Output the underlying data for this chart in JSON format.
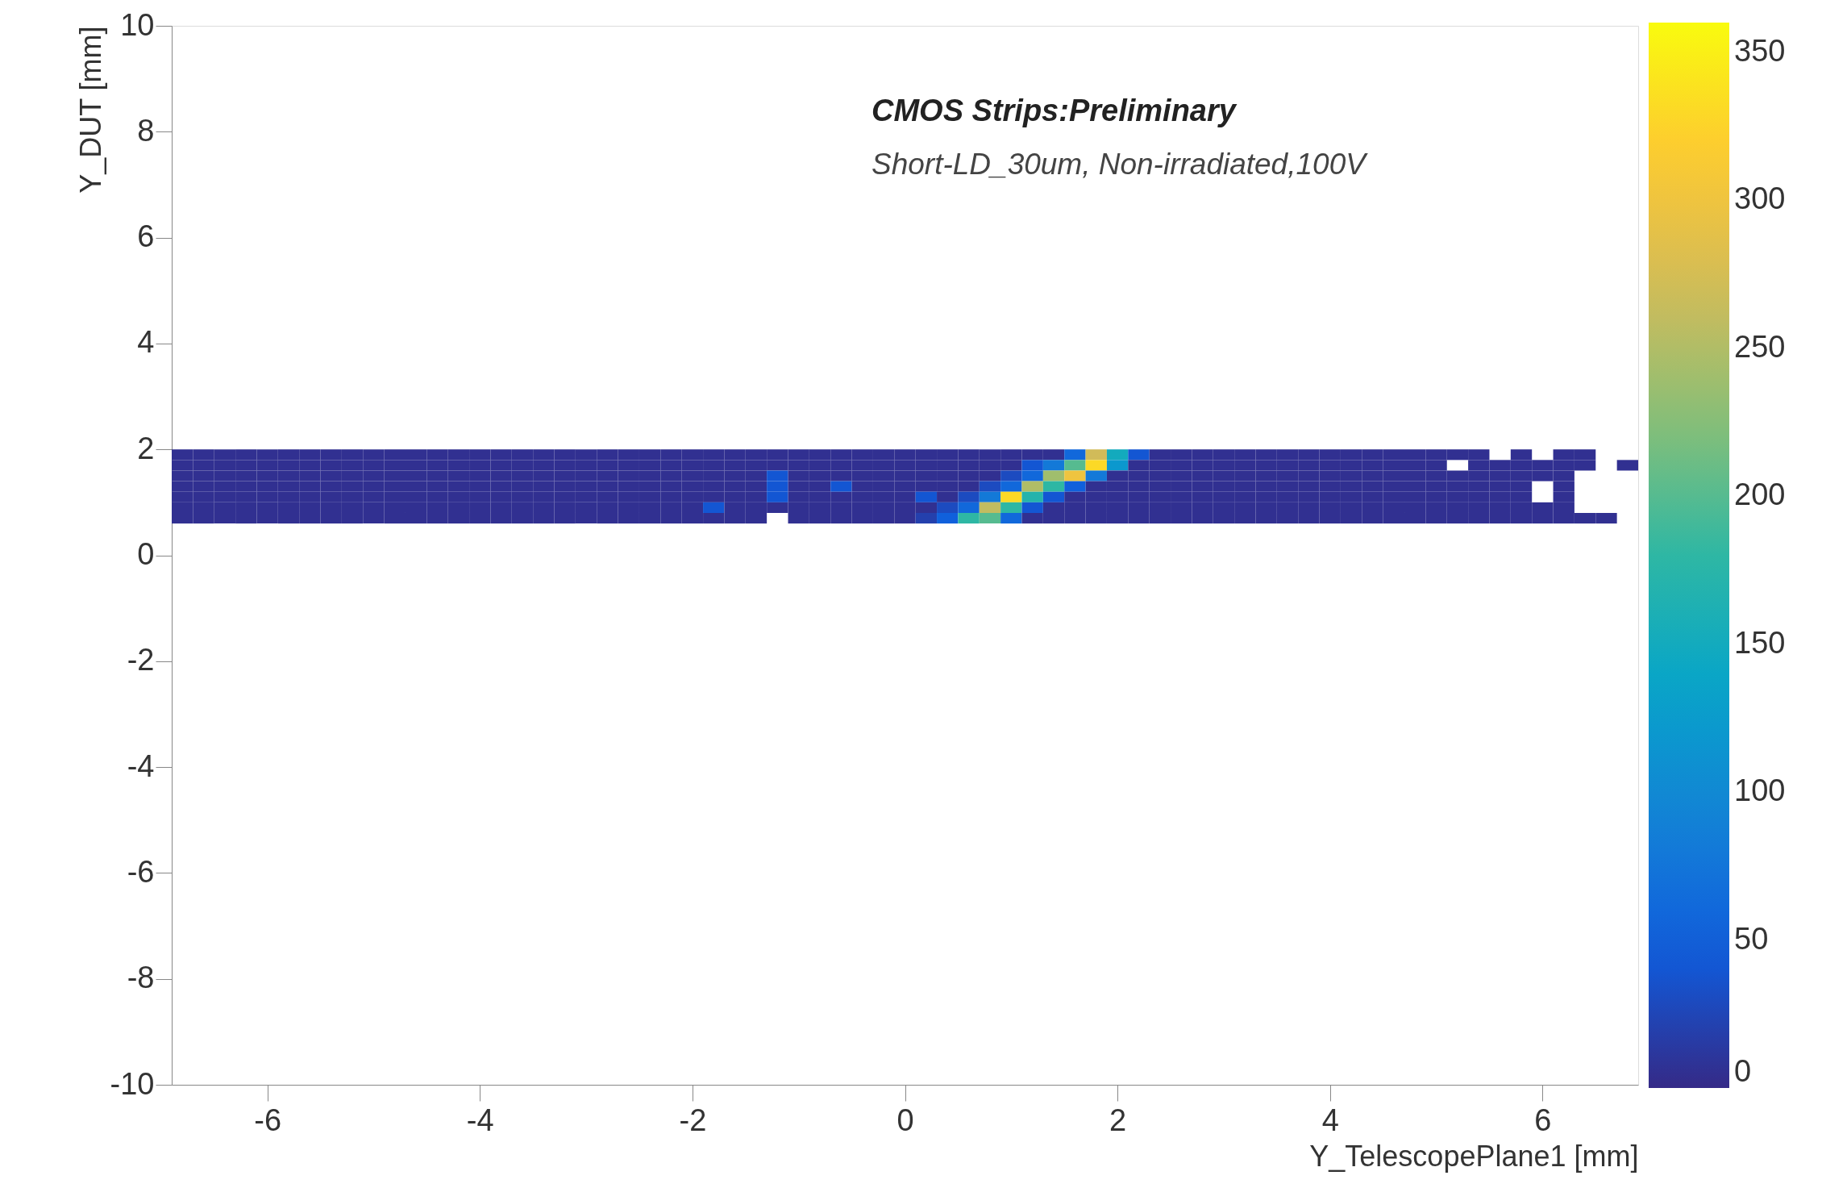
{
  "chart_data": {
    "type": "heatmap",
    "annotations": [
      "CMOS Strips:Preliminary",
      "Short-LD_30um, Non-irradiated,100V"
    ],
    "xlabel": "Y_TelescopePlane1 [mm]",
    "ylabel": "Y_DUT [mm]",
    "x": [
      -6.8,
      -6.6,
      -6.4,
      -6.2,
      -6.0,
      -5.8,
      -5.6,
      -5.4,
      -5.2,
      -5.0,
      -4.8,
      -4.6,
      -4.4,
      -4.2,
      -4.0,
      -3.8,
      -3.6,
      -3.4,
      -3.2,
      -3.0,
      -2.8,
      -2.6,
      -2.4,
      -2.2,
      -2.0,
      -1.8,
      -1.6,
      -1.4,
      -1.2,
      -1.0,
      -0.8,
      -0.6,
      -0.4,
      -0.2,
      0.0,
      0.2,
      0.4,
      0.6,
      0.8,
      1.0,
      1.2,
      1.4,
      1.6,
      1.8,
      2.0,
      2.2,
      2.4,
      2.6,
      2.8,
      3.0,
      3.2,
      3.4,
      3.6,
      3.8,
      4.0,
      4.2,
      4.4,
      4.6,
      4.8,
      5.0,
      5.2,
      5.4,
      5.6,
      5.8,
      6.0,
      6.2,
      6.4,
      6.6,
      6.8
    ],
    "y": [
      1.9,
      1.7,
      1.5,
      1.3,
      1.1,
      0.9,
      0.7
    ],
    "cells": [
      [
        5,
        5,
        5,
        5,
        5,
        5,
        5,
        5,
        5,
        5,
        5,
        5,
        5,
        5,
        5,
        5,
        5,
        5,
        5,
        5,
        5,
        5,
        5,
        5,
        5,
        5,
        5,
        5,
        5,
        5,
        5,
        5,
        5,
        5,
        5,
        5,
        5,
        5,
        5,
        5,
        5,
        5,
        60,
        270,
        150,
        40,
        5,
        5,
        5,
        5,
        5,
        5,
        5,
        5,
        5,
        5,
        5,
        5,
        5,
        5,
        5,
        5,
        null,
        5,
        null,
        5,
        5,
        null,
        null
      ],
      [
        5,
        5,
        5,
        5,
        5,
        5,
        5,
        5,
        5,
        5,
        5,
        5,
        5,
        5,
        5,
        5,
        5,
        5,
        5,
        5,
        5,
        5,
        5,
        5,
        5,
        5,
        5,
        5,
        5,
        5,
        5,
        5,
        5,
        5,
        5,
        5,
        5,
        5,
        5,
        5,
        40,
        80,
        200,
        330,
        120,
        5,
        5,
        5,
        5,
        5,
        5,
        5,
        5,
        5,
        5,
        5,
        5,
        5,
        5,
        5,
        null,
        5,
        5,
        5,
        5,
        5,
        5,
        null,
        5
      ],
      [
        5,
        5,
        5,
        5,
        5,
        5,
        5,
        5,
        5,
        5,
        5,
        5,
        5,
        5,
        5,
        5,
        5,
        5,
        5,
        5,
        5,
        5,
        5,
        5,
        5,
        5,
        5,
        5,
        40,
        5,
        5,
        5,
        5,
        5,
        5,
        5,
        5,
        5,
        5,
        30,
        60,
        240,
        300,
        80,
        5,
        5,
        5,
        5,
        5,
        5,
        5,
        5,
        5,
        5,
        5,
        5,
        5,
        5,
        5,
        5,
        5,
        5,
        5,
        5,
        5,
        5,
        null,
        null,
        null
      ],
      [
        5,
        5,
        5,
        5,
        5,
        5,
        5,
        5,
        5,
        5,
        5,
        5,
        5,
        5,
        5,
        5,
        5,
        5,
        5,
        5,
        5,
        5,
        5,
        5,
        5,
        5,
        5,
        5,
        40,
        5,
        5,
        40,
        5,
        5,
        5,
        5,
        5,
        5,
        30,
        60,
        250,
        180,
        50,
        5,
        5,
        5,
        5,
        5,
        5,
        5,
        5,
        5,
        5,
        5,
        5,
        5,
        5,
        5,
        5,
        5,
        5,
        5,
        5,
        5,
        null,
        5,
        null,
        null,
        null
      ],
      [
        5,
        5,
        5,
        5,
        5,
        5,
        5,
        5,
        5,
        5,
        5,
        5,
        5,
        5,
        5,
        5,
        5,
        5,
        5,
        5,
        5,
        5,
        5,
        5,
        5,
        5,
        5,
        5,
        40,
        5,
        5,
        5,
        5,
        5,
        5,
        40,
        5,
        30,
        80,
        330,
        170,
        40,
        5,
        5,
        5,
        5,
        5,
        5,
        5,
        5,
        5,
        5,
        5,
        5,
        5,
        5,
        5,
        5,
        5,
        5,
        5,
        5,
        5,
        5,
        null,
        5,
        null,
        null,
        null
      ],
      [
        5,
        5,
        5,
        5,
        5,
        5,
        5,
        5,
        5,
        5,
        5,
        5,
        5,
        5,
        5,
        5,
        5,
        5,
        5,
        5,
        5,
        5,
        5,
        5,
        5,
        40,
        5,
        5,
        5,
        5,
        5,
        5,
        5,
        5,
        5,
        5,
        30,
        60,
        260,
        180,
        40,
        5,
        5,
        5,
        5,
        5,
        5,
        5,
        5,
        5,
        5,
        5,
        5,
        5,
        5,
        5,
        5,
        5,
        5,
        5,
        5,
        5,
        5,
        5,
        5,
        5,
        null,
        null,
        null
      ],
      [
        5,
        5,
        5,
        5,
        5,
        5,
        5,
        5,
        5,
        5,
        5,
        5,
        5,
        5,
        5,
        5,
        5,
        5,
        5,
        5,
        5,
        5,
        5,
        5,
        5,
        5,
        5,
        5,
        null,
        5,
        5,
        5,
        5,
        5,
        5,
        20,
        50,
        180,
        200,
        60,
        5,
        5,
        5,
        5,
        5,
        5,
        5,
        5,
        5,
        5,
        5,
        5,
        5,
        5,
        5,
        5,
        5,
        5,
        5,
        5,
        5,
        5,
        5,
        5,
        5,
        5,
        5,
        5,
        null
      ]
    ],
    "xlim": [
      -6.9,
      6.9
    ],
    "xticks": [
      -6,
      -4,
      -2,
      0,
      2,
      4,
      6
    ],
    "ylim": [
      -10,
      10
    ],
    "yticks": [
      -10,
      -8,
      -6,
      -4,
      -2,
      0,
      2,
      4,
      6,
      8,
      10
    ],
    "clim": [
      0,
      360
    ],
    "cticks": [
      0,
      50,
      100,
      150,
      200,
      250,
      300,
      350
    ]
  }
}
